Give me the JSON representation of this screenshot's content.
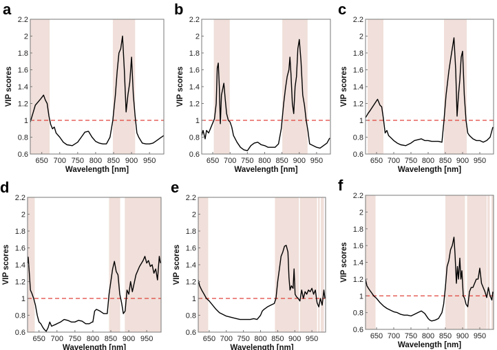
{
  "colors": {
    "shade": "#f0dfda",
    "threshold": "#e0413a",
    "line": "#000000",
    "axis": "#777777"
  },
  "chart_data": [
    {
      "panel": "a",
      "type": "line",
      "xlabel": "Wavelength [nm]",
      "ylabel": "VIP scores",
      "xlim": [
        618,
        990
      ],
      "ylim": [
        0.6,
        2.2
      ],
      "xticks": [
        650,
        700,
        750,
        800,
        850,
        900,
        950
      ],
      "yticks": [
        0.6,
        0.8,
        1,
        1.2,
        1.4,
        1.6,
        1.8,
        2,
        2.2
      ],
      "threshold": 1,
      "shaded_ranges": [
        [
          618,
          672
        ],
        [
          848,
          910
        ]
      ],
      "x": [
        618,
        625,
        632,
        640,
        648,
        655,
        660,
        665,
        670,
        675,
        680,
        685,
        690,
        700,
        710,
        720,
        735,
        750,
        760,
        770,
        780,
        790,
        800,
        810,
        820,
        830,
        840,
        848,
        855,
        860,
        865,
        870,
        875,
        880,
        885,
        890,
        895,
        900,
        905,
        910,
        915,
        920,
        930,
        940,
        950,
        960,
        970,
        980,
        990
      ],
      "y": [
        0.98,
        1.08,
        1.18,
        1.22,
        1.26,
        1.3,
        1.24,
        1.2,
        1.05,
        0.95,
        0.9,
        0.92,
        0.85,
        0.8,
        0.74,
        0.71,
        0.7,
        0.74,
        0.8,
        0.86,
        0.87,
        0.8,
        0.75,
        0.73,
        0.72,
        0.72,
        0.8,
        1.0,
        1.3,
        1.58,
        1.8,
        1.85,
        2.0,
        1.6,
        1.1,
        1.3,
        1.45,
        1.75,
        1.3,
        1.05,
        0.85,
        0.8,
        0.73,
        0.72,
        0.72,
        0.73,
        0.76,
        0.79,
        0.82
      ]
    },
    {
      "panel": "b",
      "type": "line",
      "xlabel": "Wavelength [nm]",
      "ylabel": "VIP scores",
      "xlim": [
        618,
        990
      ],
      "ylim": [
        0.6,
        2.2
      ],
      "xticks": [
        650,
        700,
        750,
        800,
        850,
        900,
        950
      ],
      "yticks": [
        0.6,
        0.8,
        1,
        1.2,
        1.4,
        1.6,
        1.8,
        2,
        2.2
      ],
      "threshold": 1,
      "shaded_ranges": [
        [
          653,
          699
        ],
        [
          851,
          924
        ]
      ],
      "x": [
        618,
        622,
        628,
        632,
        638,
        645,
        650,
        655,
        660,
        663,
        666,
        669,
        672,
        675,
        679,
        682,
        686,
        690,
        695,
        700,
        705,
        710,
        720,
        730,
        740,
        750,
        760,
        770,
        780,
        790,
        800,
        810,
        820,
        830,
        840,
        848,
        855,
        860,
        865,
        870,
        873,
        876,
        880,
        884,
        888,
        892,
        896,
        900,
        905,
        910,
        915,
        920,
        925,
        930,
        940,
        950,
        960,
        970,
        980,
        988
      ],
      "y": [
        0.82,
        0.88,
        0.78,
        0.88,
        0.85,
        0.92,
        0.97,
        1.02,
        1.2,
        1.62,
        1.68,
        1.4,
        0.96,
        1.3,
        1.38,
        1.44,
        1.25,
        1.08,
        1.0,
        0.98,
        0.92,
        0.82,
        0.74,
        0.68,
        0.65,
        0.64,
        0.7,
        0.73,
        0.74,
        0.71,
        0.7,
        0.68,
        0.68,
        0.68,
        0.72,
        0.9,
        1.2,
        1.38,
        1.52,
        1.6,
        1.75,
        1.55,
        1.2,
        1.08,
        1.4,
        1.52,
        1.85,
        1.96,
        1.7,
        1.3,
        1.18,
        1.0,
        0.88,
        0.72,
        0.7,
        0.68,
        0.67,
        0.7,
        0.73,
        0.79
      ]
    },
    {
      "panel": "c",
      "type": "line",
      "xlabel": "Wavelength [nm]",
      "ylabel": "VIP scores",
      "xlim": [
        618,
        990
      ],
      "ylim": [
        0.6,
        2.2
      ],
      "xticks": [
        650,
        700,
        750,
        800,
        850,
        900,
        950
      ],
      "yticks": [
        0.6,
        0.8,
        1,
        1.2,
        1.4,
        1.6,
        1.8,
        2,
        2.2
      ],
      "threshold": 1,
      "shaded_ranges": [
        [
          624,
          670
        ],
        [
          846,
          912
        ]
      ],
      "x": [
        618,
        625,
        632,
        640,
        648,
        653,
        660,
        665,
        670,
        675,
        680,
        685,
        690,
        700,
        710,
        720,
        735,
        750,
        760,
        770,
        780,
        790,
        800,
        810,
        820,
        830,
        840,
        846,
        852,
        860,
        865,
        870,
        875,
        880,
        884,
        888,
        892,
        896,
        900,
        905,
        910,
        915,
        920,
        930,
        940,
        950,
        960,
        970,
        980,
        988
      ],
      "y": [
        1.03,
        1.08,
        1.12,
        1.17,
        1.22,
        1.25,
        1.18,
        1.16,
        1.02,
        0.85,
        0.88,
        0.82,
        0.8,
        0.76,
        0.73,
        0.71,
        0.7,
        0.73,
        0.76,
        0.77,
        0.78,
        0.76,
        0.76,
        0.75,
        0.75,
        0.75,
        0.74,
        1.0,
        1.3,
        1.58,
        1.72,
        1.85,
        1.98,
        1.6,
        1.05,
        1.3,
        1.48,
        1.75,
        1.82,
        1.3,
        1.0,
        0.85,
        0.82,
        0.78,
        0.76,
        0.76,
        0.74,
        0.76,
        0.8,
        0.92
      ]
    },
    {
      "panel": "d",
      "type": "line",
      "xlabel": "Wavelength [nm]",
      "ylabel": "VIP scores",
      "xlim": [
        618,
        990
      ],
      "ylim": [
        0.6,
        2.2
      ],
      "xticks": [
        650,
        700,
        750,
        800,
        850,
        900,
        950
      ],
      "yticks": [
        0.6,
        0.8,
        1,
        1.2,
        1.4,
        1.6,
        1.8,
        2,
        2.2
      ],
      "threshold": 1,
      "shaded_ranges": [
        [
          618,
          638
        ],
        [
          845,
          876
        ],
        [
          889,
          990
        ]
      ],
      "x": [
        618,
        620,
        623,
        626,
        630,
        635,
        640,
        645,
        650,
        655,
        660,
        665,
        670,
        675,
        680,
        685,
        690,
        700,
        710,
        720,
        730,
        740,
        750,
        760,
        770,
        780,
        790,
        798,
        800,
        805,
        810,
        820,
        830,
        840,
        845,
        850,
        855,
        860,
        865,
        870,
        875,
        880,
        885,
        890,
        895,
        900,
        905,
        910,
        920,
        930,
        940,
        945,
        950,
        955,
        960,
        965,
        970,
        975,
        980,
        985,
        988
      ],
      "y": [
        1.42,
        1.49,
        1.3,
        1.1,
        1.06,
        1.0,
        0.92,
        0.8,
        0.72,
        0.7,
        0.66,
        0.63,
        0.61,
        0.65,
        0.72,
        0.67,
        0.68,
        0.7,
        0.72,
        0.75,
        0.74,
        0.72,
        0.72,
        0.74,
        0.73,
        0.7,
        0.7,
        0.72,
        0.72,
        0.85,
        0.87,
        0.85,
        0.82,
        0.82,
        1.05,
        1.2,
        1.35,
        1.44,
        1.32,
        1.28,
        1.05,
        0.95,
        0.82,
        0.85,
        1.1,
        1.05,
        1.2,
        1.08,
        1.28,
        1.38,
        1.45,
        1.5,
        1.42,
        1.45,
        1.38,
        1.4,
        1.3,
        1.35,
        1.22,
        1.5,
        1.42
      ]
    },
    {
      "panel": "e",
      "type": "line",
      "xlabel": "Wavelength [nm]",
      "ylabel": "VIP scores",
      "xlim": [
        618,
        990
      ],
      "ylim": [
        0.6,
        2.2
      ],
      "xticks": [
        650,
        700,
        750,
        800,
        850,
        900,
        950
      ],
      "yticks": [
        0.6,
        0.8,
        1,
        1.2,
        1.4,
        1.6,
        1.8,
        2,
        2.2
      ],
      "threshold": 1,
      "shaded_ranges": [
        [
          618,
          647
        ],
        [
          842,
          912
        ],
        [
          915,
          965
        ],
        [
          968,
          973
        ],
        [
          976,
          985
        ]
      ],
      "x": [
        618,
        622,
        628,
        635,
        642,
        650,
        660,
        670,
        680,
        690,
        700,
        710,
        720,
        730,
        740,
        750,
        760,
        770,
        780,
        790,
        800,
        805,
        810,
        820,
        830,
        840,
        845,
        850,
        855,
        860,
        865,
        870,
        875,
        880,
        883,
        886,
        890,
        895,
        898,
        901,
        905,
        910,
        915,
        920,
        925,
        930,
        935,
        940,
        945,
        950,
        955,
        960,
        965,
        970,
        975,
        980,
        985,
        988
      ],
      "y": [
        1.22,
        1.15,
        1.1,
        1.05,
        1.0,
        0.97,
        0.92,
        0.87,
        0.83,
        0.81,
        0.79,
        0.78,
        0.77,
        0.76,
        0.75,
        0.75,
        0.75,
        0.75,
        0.76,
        0.75,
        0.8,
        0.85,
        0.87,
        0.9,
        0.92,
        0.94,
        1.0,
        1.2,
        1.35,
        1.5,
        1.55,
        1.62,
        1.63,
        1.55,
        1.25,
        1.1,
        1.15,
        1.12,
        1.35,
        1.05,
        1.02,
        1.0,
        0.97,
        1.1,
        1.0,
        1.08,
        1.05,
        1.1,
        1.08,
        1.12,
        1.05,
        1.1,
        0.95,
        0.9,
        1.0,
        0.92,
        1.1,
        1.0
      ]
    },
    {
      "panel": "f",
      "type": "line",
      "xlabel": "Wavelength [nm]",
      "ylabel": "VIP scores",
      "xlim": [
        618,
        990
      ],
      "ylim": [
        0.6,
        2.2
      ],
      "xticks": [
        650,
        700,
        750,
        800,
        850,
        900,
        950
      ],
      "yticks": [
        0.6,
        0.8,
        1,
        1.2,
        1.4,
        1.6,
        1.8,
        2,
        2.2
      ],
      "threshold": 1,
      "shaded_ranges": [
        [
          618,
          647
        ],
        [
          850,
          907
        ],
        [
          913,
          970
        ],
        [
          972,
          979
        ],
        [
          984,
          990
        ]
      ],
      "x": [
        618,
        622,
        628,
        635,
        642,
        650,
        660,
        670,
        680,
        690,
        700,
        710,
        720,
        730,
        740,
        750,
        760,
        770,
        780,
        790,
        800,
        805,
        810,
        820,
        830,
        840,
        845,
        850,
        855,
        860,
        865,
        870,
        875,
        878,
        882,
        885,
        888,
        892,
        895,
        898,
        902,
        906,
        910,
        915,
        920,
        925,
        930,
        935,
        940,
        945,
        950,
        955,
        960,
        965,
        970,
        975,
        980,
        985,
        988
      ],
      "y": [
        1.2,
        1.12,
        1.08,
        1.04,
        1.0,
        0.97,
        0.92,
        0.88,
        0.85,
        0.83,
        0.81,
        0.8,
        0.78,
        0.77,
        0.77,
        0.76,
        0.78,
        0.8,
        0.82,
        0.79,
        0.73,
        0.71,
        0.7,
        0.71,
        0.73,
        0.8,
        0.9,
        1.1,
        1.35,
        1.42,
        1.55,
        1.6,
        1.7,
        1.5,
        1.15,
        1.35,
        1.2,
        1.45,
        1.2,
        1.3,
        1.0,
        0.97,
        0.9,
        0.87,
        1.05,
        1.1,
        1.1,
        1.15,
        1.2,
        1.2,
        1.33,
        1.15,
        1.1,
        1.05,
        0.98,
        1.1,
        1.0,
        0.95,
        1.05
      ]
    }
  ]
}
